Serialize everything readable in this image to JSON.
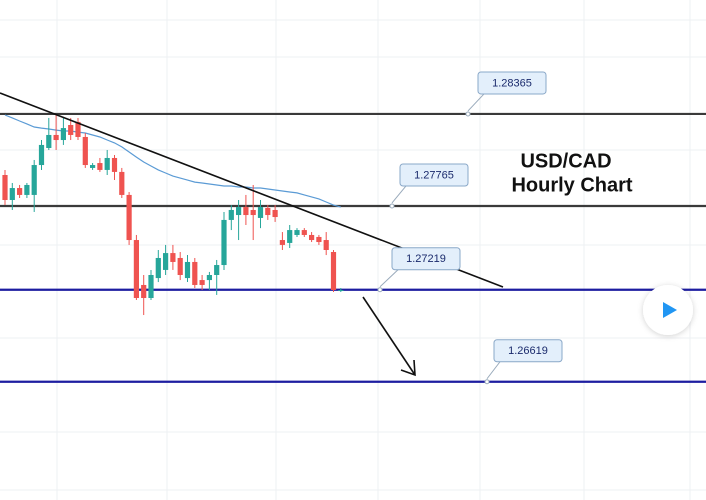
{
  "chart_data": {
    "type": "candlestick",
    "title": "USD/CAD",
    "subtitle": "Hourly Chart",
    "ylim": [
      1.25848,
      1.29108
    ],
    "up_color": "#26a69a",
    "down_color": "#ef5350",
    "open": [
      1.27967,
      1.27804,
      1.27882,
      1.27837,
      1.27837,
      1.28032,
      1.28143,
      1.28228,
      1.28195,
      1.28293,
      1.28313,
      1.28215,
      1.28013,
      1.28045,
      1.28,
      1.28078,
      1.27987,
      1.27837,
      1.27543,
      1.2725,
      1.27165,
      1.27295,
      1.27348,
      1.27458,
      1.27426,
      1.27295,
      1.274,
      1.27282,
      1.27282,
      1.27315,
      1.2738,
      1.27674,
      1.27706,
      1.27758,
      1.27739,
      1.27687,
      1.27752,
      1.27739,
      1.27543,
      1.27524,
      1.27576,
      1.27608,
      1.27576,
      1.27563,
      1.27543,
      1.27465,
      1.27217
    ],
    "high": [
      1.28,
      1.27915,
      1.27902,
      1.27915,
      1.28065,
      1.28195,
      1.28339,
      1.28358,
      1.28339,
      1.28339,
      1.28339,
      1.28241,
      1.28045,
      1.28078,
      1.2813,
      1.28097,
      1.28013,
      1.27856,
      1.27576,
      1.27315,
      1.27348,
      1.27478,
      1.27511,
      1.27511,
      1.27465,
      1.27445,
      1.27426,
      1.27315,
      1.27335,
      1.27413,
      1.27726,
      1.27771,
      1.27804,
      1.27837,
      1.27902,
      1.27804,
      1.27771,
      1.27771,
      1.27595,
      1.27641,
      1.27621,
      1.27621,
      1.27595,
      1.27576,
      1.27595,
      1.27478,
      1.2723
    ],
    "low": [
      1.27771,
      1.27739,
      1.27817,
      1.27817,
      1.27726,
      1.28,
      1.2813,
      1.2813,
      1.28163,
      1.28195,
      1.28195,
      1.28013,
      1.28,
      1.27987,
      1.27967,
      1.27934,
      1.27817,
      1.27511,
      1.27152,
      1.27054,
      1.27152,
      1.27269,
      1.27315,
      1.27348,
      1.27282,
      1.27269,
      1.2723,
      1.27217,
      1.27217,
      1.27185,
      1.27348,
      1.27608,
      1.27543,
      1.27641,
      1.27543,
      1.27621,
      1.27674,
      1.27661,
      1.27478,
      1.27491,
      1.27563,
      1.27563,
      1.2753,
      1.27511,
      1.27445,
      1.27204,
      1.27204
    ],
    "close": [
      1.27804,
      1.27882,
      1.27837,
      1.27902,
      1.28032,
      1.28163,
      1.28228,
      1.28195,
      1.28273,
      1.28228,
      1.28215,
      1.28032,
      1.28032,
      1.28,
      1.28078,
      1.27987,
      1.27837,
      1.27543,
      1.27165,
      1.27165,
      1.27315,
      1.27426,
      1.27458,
      1.274,
      1.27315,
      1.274,
      1.2725,
      1.2725,
      1.27315,
      1.2738,
      1.27674,
      1.27739,
      1.27758,
      1.27706,
      1.27706,
      1.27758,
      1.27706,
      1.27693,
      1.27511,
      1.27608,
      1.27608,
      1.27576,
      1.27543,
      1.2753,
      1.27478,
      1.27217,
      1.27217
    ],
    "moving_average": {
      "color": "#5b9bd5",
      "values": [
        1.28358,
        1.28339,
        1.28319,
        1.283,
        1.2828,
        1.28273,
        1.28267,
        1.2826,
        1.28254,
        1.28254,
        1.28247,
        1.28241,
        1.28228,
        1.28215,
        1.28195,
        1.28176,
        1.2815,
        1.28117,
        1.28084,
        1.28052,
        1.28026,
        1.28,
        1.2798,
        1.2796,
        1.27947,
        1.27934,
        1.27921,
        1.27915,
        1.27908,
        1.27902,
        1.27895,
        1.27895,
        1.27889,
        1.27889,
        1.27882,
        1.27882,
        1.27876,
        1.27869,
        1.27863,
        1.27856,
        1.2785,
        1.27837,
        1.27824,
        1.27811,
        1.27791,
        1.27771,
        1.27758
      ]
    },
    "levels": [
      {
        "value": 1.28365,
        "color": "#3a3a3a"
      },
      {
        "value": 1.27765,
        "color": "#3a3a3a"
      },
      {
        "value": 1.27219,
        "color": "#1d1da0"
      },
      {
        "value": 1.26619,
        "color": "#1d1da0"
      }
    ]
  }
}
